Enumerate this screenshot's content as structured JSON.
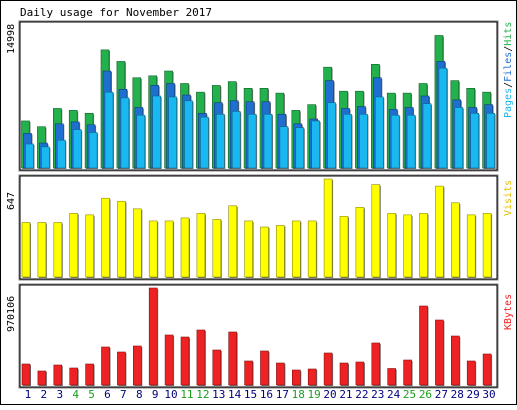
{
  "chart_data": {
    "type": "bar",
    "title": "Daily usage for November 2017",
    "days": [
      "1",
      "2",
      "3",
      "4",
      "5",
      "6",
      "7",
      "8",
      "9",
      "10",
      "11",
      "12",
      "13",
      "14",
      "15",
      "16",
      "17",
      "18",
      "19",
      "20",
      "21",
      "22",
      "23",
      "24",
      "25",
      "26",
      "27",
      "28",
      "29",
      "30"
    ],
    "weekend_days": [
      "4",
      "5",
      "11",
      "12",
      "18",
      "19",
      "25",
      "26"
    ],
    "colors": {
      "hits": "#22b14c",
      "files": "#1f6fd1",
      "pages": "#1ab8f0",
      "visits": "#ffff00",
      "kbytes": "#ee2222",
      "weekday_label": "#000080",
      "weekend_label": "#1a9e1a"
    },
    "panels": [
      {
        "id": "hits",
        "axis_max_label": "14998",
        "ymax": 14998,
        "legend": [
          "Pages",
          "Files",
          "Hits"
        ],
        "legend_separator": "/",
        "series": [
          {
            "name": "Hits",
            "values": [
              4900,
              4300,
              6200,
              6000,
              5700,
              12300,
              11100,
              9400,
              9600,
              10100,
              8800,
              7900,
              8600,
              9000,
              8300,
              8300,
              7800,
              6000,
              6600,
              10500,
              8000,
              8000,
              10800,
              7800,
              7800,
              8800,
              13800,
              9100,
              8300,
              7900
            ]
          },
          {
            "name": "Files",
            "values": [
              3600,
              2600,
              4600,
              4800,
              4500,
              10100,
              8200,
              6300,
              8600,
              8800,
              7600,
              5700,
              6800,
              7000,
              6900,
              6900,
              5600,
              4600,
              5100,
              9100,
              6200,
              6400,
              9400,
              6100,
              6300,
              7500,
              11100,
              7100,
              6300,
              6600
            ]
          },
          {
            "name": "Pages",
            "values": [
              2500,
              2200,
              2900,
              4000,
              3700,
              7900,
              7300,
              5500,
              7500,
              7400,
              7000,
              5300,
              5600,
              5900,
              5600,
              5600,
              4300,
              4200,
              4900,
              6800,
              5600,
              5600,
              7400,
              5500,
              5500,
              6700,
              10400,
              6300,
              5700,
              5700
            ]
          }
        ]
      },
      {
        "id": "visits",
        "axis_max_label": "647",
        "ymax": 647,
        "legend": [
          "Visits"
        ],
        "series": [
          {
            "name": "Visits",
            "values": [
              360,
              360,
              360,
              420,
              410,
              520,
              500,
              450,
              370,
              370,
              390,
              420,
              380,
              470,
              370,
              330,
              340,
              370,
              370,
              647,
              400,
              460,
              610,
              420,
              410,
              420,
              600,
              490,
              410,
              420
            ]
          }
        ]
      },
      {
        "id": "kbytes",
        "axis_max_label": "970106",
        "ymax": 970106,
        "legend": [
          "KBytes"
        ],
        "series": [
          {
            "name": "KBytes",
            "values": [
              210000,
              140000,
              200000,
              170000,
              210000,
              380000,
              330000,
              390000,
              970106,
              500000,
              480000,
              550000,
              350000,
              530000,
              240000,
              340000,
              220000,
              150000,
              160000,
              320000,
              220000,
              230000,
              420000,
              165000,
              250000,
              790000,
              650000,
              490000,
              240000,
              310000
            ]
          }
        ]
      }
    ]
  }
}
